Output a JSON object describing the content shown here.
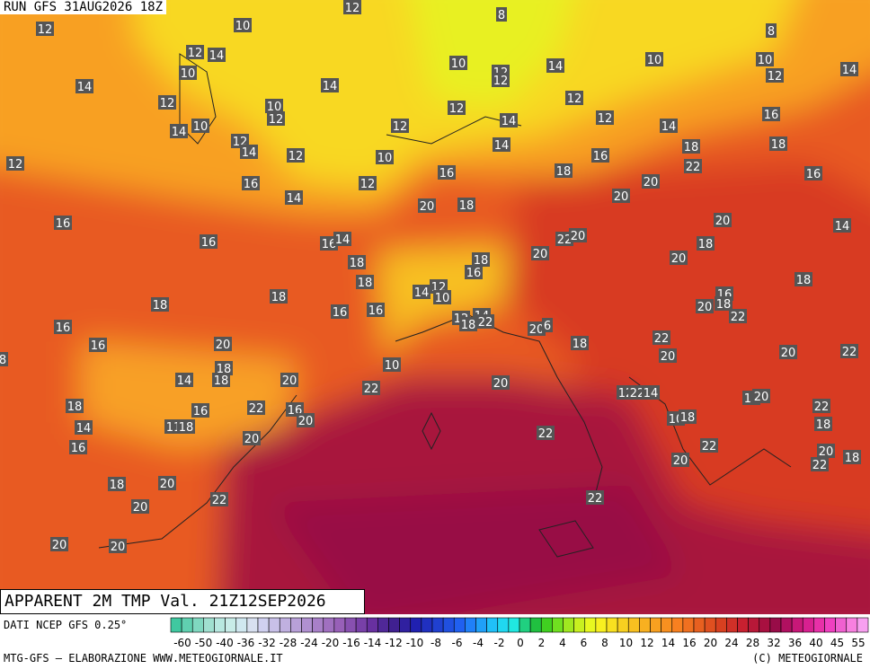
{
  "header": {
    "run": "RUN GFS 31AUG2026 18Z"
  },
  "map": {
    "labels": [
      "12",
      "10",
      "12",
      "8",
      "8",
      "12",
      "14",
      "10",
      "10",
      "12",
      "12",
      "14",
      "10",
      "10",
      "12",
      "14",
      "14",
      "14",
      "12",
      "10",
      "12",
      "12",
      "12",
      "16",
      "14",
      "10",
      "12",
      "14",
      "12",
      "14",
      "12",
      "14",
      "12",
      "10",
      "14",
      "16",
      "18",
      "18",
      "22",
      "12",
      "16",
      "18",
      "16",
      "16",
      "12",
      "14",
      "20",
      "20",
      "20",
      "18",
      "16",
      "20",
      "14",
      "16",
      "16",
      "14",
      "22",
      "20",
      "18",
      "18",
      "20",
      "20",
      "18",
      "16",
      "18",
      "18",
      "14",
      "12",
      "10",
      "18",
      "18",
      "16",
      "16",
      "16",
      "20",
      "18",
      "22",
      "12",
      "14",
      "18",
      "22",
      "16",
      "20",
      "6",
      "16",
      "20",
      "18",
      "22",
      "20",
      "20",
      "22",
      "8",
      "10",
      "18",
      "18",
      "14",
      "20",
      "22",
      "20",
      "12",
      "22",
      "14",
      "12",
      "20",
      "18",
      "22",
      "16",
      "22",
      "14",
      "11",
      "18",
      "20",
      "16",
      "10",
      "18",
      "18",
      "22",
      "20",
      "16",
      "22",
      "20",
      "18",
      "22",
      "20",
      "18",
      "20",
      "20",
      "22",
      "22",
      "20",
      "20"
    ]
  },
  "footer": {
    "title": "APPARENT 2M TMP Val. 21Z12SEP2026",
    "source": "DATI NCEP GFS 0.25°",
    "credit": "MTG-GFS — ELABORAZIONE WWW.METEOGIORNALE.IT",
    "copyright": "(C) METEOGIORNALE"
  },
  "colorbar": {
    "labels": [
      "-60",
      "-50",
      "-40",
      "-36",
      "-32",
      "-28",
      "-24",
      "-20",
      "-16",
      "-14",
      "-12",
      "-10",
      "-8",
      "-6",
      "-4",
      "-2",
      "0",
      "2",
      "4",
      "6",
      "8",
      "10",
      "12",
      "14",
      "16",
      "20",
      "24",
      "28",
      "32",
      "36",
      "40",
      "45",
      "55"
    ],
    "colors": [
      "#40c8a0",
      "#60d0b0",
      "#80d8c0",
      "#a0e0d0",
      "#b8e8e0",
      "#c8ece8",
      "#d0e8f0",
      "#d8e0f0",
      "#d0d0f0",
      "#c8c0e8",
      "#c0b0e0",
      "#b8a0d8",
      "#b090d0",
      "#a880c8",
      "#a070c0",
      "#9860b8",
      "#8850b0",
      "#7840a8",
      "#6830a0",
      "#502898",
      "#402090",
      "#3020a0",
      "#2020b0",
      "#2030c0",
      "#2040d0",
      "#2050e0",
      "#2060f0",
      "#2080f8",
      "#20a0f8",
      "#20c0f8",
      "#20d8f0",
      "#20e8e0",
      "#20d080",
      "#20c040",
      "#40d020",
      "#70e020",
      "#a0e820",
      "#c8f020",
      "#e8f820",
      "#f8f020",
      "#f8e020",
      "#f8d020",
      "#f8c020",
      "#f8b020",
      "#f8a020",
      "#f89020",
      "#f88020",
      "#f07020",
      "#e86020",
      "#e05020",
      "#d84020",
      "#d03028",
      "#c82030",
      "#b81838",
      "#a81040",
      "#980c48",
      "#b01060",
      "#c81878",
      "#d82090",
      "#e830a8",
      "#f040c0",
      "#f060d0",
      "#f880e0",
      "#f8a0f0"
    ]
  }
}
